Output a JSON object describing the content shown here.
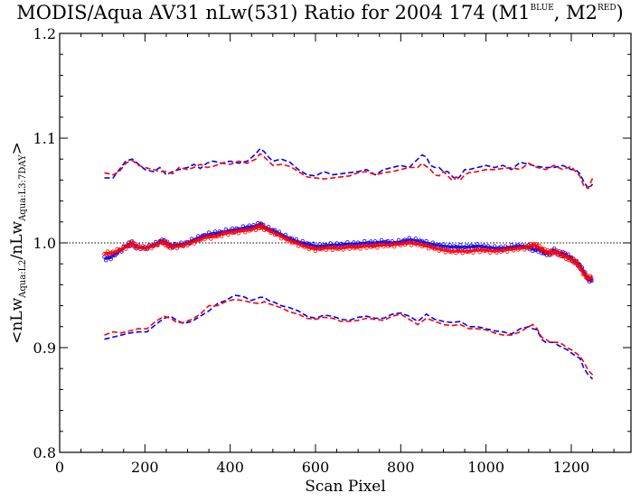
{
  "chart_data": {
    "type": "line",
    "title": {
      "main": "MODIS/Aqua AV31 nLw(531) Ratio for 2004 174 (M1",
      "sup1": "BLUE",
      "mid": ", M2",
      "sup2": "RED",
      "end": ")"
    },
    "xlabel": "Scan Pixel",
    "ylabel": {
      "prefix": "<nLw",
      "sub1": "Aqua:L2",
      "middle": "/nLw",
      "sub2": "Aqua:L3:7DAY",
      "suffix": ">"
    },
    "xlim": [
      0,
      1340
    ],
    "ylim": [
      0.8,
      1.2
    ],
    "xticks": [
      0,
      200,
      400,
      600,
      800,
      1000,
      1200
    ],
    "xtick_labels": [
      "0",
      "200",
      "400",
      "600",
      "800",
      "1000",
      "1200"
    ],
    "yticks": [
      0.8,
      0.9,
      1.0,
      1.1,
      1.2
    ],
    "ytick_labels": [
      "0.8",
      "0.9",
      "1.0",
      "1.1",
      "1.2"
    ],
    "reference_line": 1.0,
    "colors": {
      "blue": "#0000ff",
      "red": "#ff0000",
      "axis": "#000000"
    },
    "series": [
      {
        "color": "#0000ff",
        "style": "dashed",
        "role": "upper",
        "x": [
          105,
          125,
          140,
          155,
          170,
          185,
          200,
          220,
          235,
          250,
          265,
          280,
          300,
          315,
          330,
          345,
          360,
          380,
          400,
          420,
          440,
          460,
          470,
          480,
          490,
          500,
          520,
          540,
          560,
          580,
          600,
          620,
          640,
          660,
          680,
          700,
          720,
          740,
          760,
          780,
          800,
          820,
          840,
          850,
          860,
          870,
          880,
          890,
          900,
          910,
          920,
          930,
          940,
          950,
          960,
          980,
          1000,
          1020,
          1040,
          1060,
          1080,
          1100,
          1120,
          1140,
          1160,
          1180,
          1200,
          1210,
          1220,
          1230,
          1240,
          1250
        ],
        "y": [
          1.062,
          1.062,
          1.07,
          1.078,
          1.08,
          1.075,
          1.07,
          1.068,
          1.072,
          1.065,
          1.068,
          1.07,
          1.072,
          1.075,
          1.071,
          1.076,
          1.078,
          1.076,
          1.078,
          1.076,
          1.078,
          1.085,
          1.09,
          1.087,
          1.082,
          1.078,
          1.08,
          1.077,
          1.07,
          1.065,
          1.064,
          1.068,
          1.065,
          1.066,
          1.067,
          1.068,
          1.07,
          1.065,
          1.07,
          1.072,
          1.074,
          1.072,
          1.08,
          1.084,
          1.082,
          1.074,
          1.072,
          1.072,
          1.068,
          1.068,
          1.064,
          1.06,
          1.064,
          1.07,
          1.07,
          1.072,
          1.074,
          1.072,
          1.074,
          1.07,
          1.077,
          1.075,
          1.073,
          1.072,
          1.072,
          1.074,
          1.07,
          1.07,
          1.066,
          1.058,
          1.052,
          1.056
        ]
      },
      {
        "color": "#ff0000",
        "style": "dashed",
        "role": "upper",
        "x": [
          105,
          125,
          140,
          155,
          170,
          185,
          200,
          220,
          235,
          250,
          265,
          280,
          300,
          315,
          330,
          345,
          360,
          380,
          400,
          420,
          440,
          460,
          470,
          480,
          490,
          500,
          520,
          540,
          560,
          580,
          600,
          620,
          640,
          660,
          680,
          700,
          720,
          740,
          760,
          780,
          800,
          820,
          840,
          850,
          860,
          870,
          880,
          890,
          900,
          910,
          920,
          930,
          940,
          950,
          960,
          980,
          1000,
          1020,
          1040,
          1060,
          1080,
          1100,
          1120,
          1140,
          1160,
          1180,
          1200,
          1210,
          1220,
          1230,
          1240,
          1250
        ],
        "y": [
          1.067,
          1.065,
          1.068,
          1.076,
          1.079,
          1.074,
          1.072,
          1.07,
          1.068,
          1.068,
          1.066,
          1.072,
          1.07,
          1.072,
          1.075,
          1.072,
          1.073,
          1.076,
          1.075,
          1.078,
          1.076,
          1.08,
          1.085,
          1.082,
          1.078,
          1.074,
          1.075,
          1.073,
          1.068,
          1.063,
          1.062,
          1.061,
          1.062,
          1.063,
          1.064,
          1.067,
          1.068,
          1.065,
          1.067,
          1.068,
          1.07,
          1.072,
          1.072,
          1.076,
          1.073,
          1.07,
          1.065,
          1.064,
          1.068,
          1.064,
          1.06,
          1.063,
          1.06,
          1.065,
          1.067,
          1.068,
          1.07,
          1.07,
          1.071,
          1.072,
          1.07,
          1.076,
          1.072,
          1.07,
          1.074,
          1.07,
          1.073,
          1.068,
          1.064,
          1.054,
          1.052,
          1.062
        ]
      },
      {
        "color": "#0000ff",
        "style": "dashed",
        "role": "lower",
        "x": [
          105,
          125,
          145,
          165,
          185,
          205,
          225,
          245,
          260,
          275,
          290,
          310,
          330,
          350,
          370,
          390,
          410,
          430,
          450,
          470,
          480,
          490,
          505,
          520,
          540,
          560,
          580,
          600,
          620,
          640,
          660,
          680,
          700,
          720,
          740,
          760,
          780,
          800,
          820,
          840,
          860,
          880,
          900,
          920,
          940,
          960,
          980,
          1000,
          1020,
          1040,
          1060,
          1080,
          1100,
          1110,
          1120,
          1130,
          1140,
          1150,
          1160,
          1170,
          1180,
          1190,
          1200,
          1210,
          1220,
          1230,
          1240,
          1250
        ],
        "y": [
          0.908,
          0.91,
          0.912,
          0.914,
          0.915,
          0.915,
          0.922,
          0.928,
          0.93,
          0.926,
          0.923,
          0.925,
          0.93,
          0.935,
          0.942,
          0.945,
          0.95,
          0.949,
          0.945,
          0.948,
          0.948,
          0.945,
          0.943,
          0.94,
          0.938,
          0.935,
          0.93,
          0.928,
          0.931,
          0.93,
          0.927,
          0.926,
          0.929,
          0.93,
          0.928,
          0.928,
          0.932,
          0.933,
          0.93,
          0.925,
          0.932,
          0.927,
          0.925,
          0.924,
          0.925,
          0.92,
          0.92,
          0.918,
          0.916,
          0.915,
          0.913,
          0.918,
          0.92,
          0.918,
          0.917,
          0.908,
          0.905,
          0.905,
          0.905,
          0.902,
          0.9,
          0.898,
          0.895,
          0.892,
          0.89,
          0.88,
          0.874,
          0.87
        ]
      },
      {
        "color": "#ff0000",
        "style": "dashed",
        "role": "lower",
        "x": [
          105,
          125,
          145,
          165,
          185,
          205,
          225,
          245,
          260,
          275,
          290,
          310,
          330,
          350,
          370,
          390,
          410,
          430,
          450,
          470,
          480,
          490,
          505,
          520,
          540,
          560,
          580,
          600,
          620,
          640,
          660,
          680,
          700,
          720,
          740,
          760,
          780,
          800,
          820,
          840,
          860,
          880,
          900,
          920,
          940,
          960,
          980,
          1000,
          1020,
          1040,
          1060,
          1080,
          1100,
          1110,
          1120,
          1130,
          1140,
          1150,
          1160,
          1170,
          1180,
          1190,
          1200,
          1210,
          1220,
          1230,
          1240,
          1250
        ],
        "y": [
          0.912,
          0.915,
          0.914,
          0.916,
          0.918,
          0.918,
          0.925,
          0.93,
          0.928,
          0.924,
          0.924,
          0.927,
          0.932,
          0.94,
          0.94,
          0.944,
          0.946,
          0.945,
          0.943,
          0.942,
          0.944,
          0.942,
          0.94,
          0.938,
          0.934,
          0.932,
          0.928,
          0.927,
          0.929,
          0.928,
          0.925,
          0.925,
          0.926,
          0.928,
          0.927,
          0.926,
          0.93,
          0.932,
          0.927,
          0.922,
          0.928,
          0.925,
          0.922,
          0.921,
          0.922,
          0.918,
          0.918,
          0.917,
          0.914,
          0.912,
          0.912,
          0.915,
          0.92,
          0.922,
          0.918,
          0.91,
          0.908,
          0.905,
          0.905,
          0.905,
          0.903,
          0.9,
          0.898,
          0.895,
          0.892,
          0.886,
          0.878,
          0.874
        ]
      },
      {
        "color": "#0000ff",
        "style": "points",
        "role": "mean",
        "x": [
          105,
          120,
          140,
          160,
          170,
          180,
          200,
          220,
          240,
          250,
          260,
          280,
          300,
          320,
          340,
          360,
          380,
          400,
          420,
          440,
          460,
          470,
          480,
          500,
          520,
          540,
          560,
          580,
          600,
          620,
          640,
          660,
          680,
          700,
          720,
          740,
          760,
          780,
          800,
          820,
          840,
          860,
          880,
          900,
          920,
          940,
          960,
          980,
          1000,
          1020,
          1040,
          1060,
          1080,
          1100,
          1110,
          1120,
          1130,
          1140,
          1150,
          1160,
          1170,
          1180,
          1190,
          1200,
          1210,
          1220,
          1230,
          1240,
          1250
        ],
        "y": [
          0.985,
          0.986,
          0.992,
          0.998,
          1.0,
          0.996,
          0.995,
          0.998,
          1.002,
          1.0,
          0.997,
          0.998,
          1.0,
          1.004,
          1.007,
          1.009,
          1.01,
          1.012,
          1.013,
          1.015,
          1.016,
          1.018,
          1.015,
          1.012,
          1.008,
          1.004,
          1.001,
          0.999,
          0.997,
          0.997,
          0.998,
          0.998,
          0.999,
          0.999,
          1.0,
          1.0,
          1.001,
          1.0,
          1.001,
          1.003,
          1.002,
          1.0,
          0.998,
          0.997,
          0.996,
          0.996,
          0.996,
          0.997,
          0.996,
          0.995,
          0.995,
          0.996,
          0.997,
          0.996,
          0.994,
          0.994,
          0.992,
          0.99,
          0.99,
          0.993,
          0.99,
          0.99,
          0.988,
          0.985,
          0.982,
          0.978,
          0.972,
          0.965,
          0.964
        ]
      },
      {
        "color": "#ff0000",
        "style": "points",
        "role": "mean",
        "x": [
          105,
          120,
          140,
          160,
          170,
          180,
          200,
          220,
          240,
          250,
          260,
          280,
          300,
          320,
          340,
          360,
          380,
          400,
          420,
          440,
          460,
          470,
          480,
          500,
          520,
          540,
          560,
          580,
          600,
          620,
          640,
          660,
          680,
          700,
          720,
          740,
          760,
          780,
          800,
          820,
          840,
          860,
          880,
          900,
          920,
          940,
          960,
          980,
          1000,
          1020,
          1040,
          1060,
          1080,
          1100,
          1110,
          1120,
          1130,
          1140,
          1150,
          1160,
          1170,
          1180,
          1190,
          1200,
          1210,
          1220,
          1230,
          1240,
          1250
        ],
        "y": [
          0.99,
          0.99,
          0.993,
          0.997,
          1.0,
          0.996,
          0.995,
          0.997,
          1.001,
          0.999,
          0.996,
          0.997,
          0.999,
          1.002,
          1.005,
          1.006,
          1.008,
          1.01,
          1.011,
          1.012,
          1.014,
          1.016,
          1.014,
          1.01,
          1.006,
          1.002,
          0.999,
          0.996,
          0.994,
          0.995,
          0.995,
          0.995,
          0.996,
          0.996,
          0.997,
          0.997,
          0.998,
          0.998,
          0.999,
          1.0,
          0.999,
          0.997,
          0.995,
          0.993,
          0.992,
          0.992,
          0.992,
          0.993,
          0.993,
          0.992,
          0.993,
          0.994,
          0.995,
          0.996,
          0.998,
          0.997,
          0.994,
          0.992,
          0.99,
          0.992,
          0.99,
          0.988,
          0.986,
          0.984,
          0.982,
          0.977,
          0.97,
          0.966,
          0.968
        ]
      }
    ]
  }
}
